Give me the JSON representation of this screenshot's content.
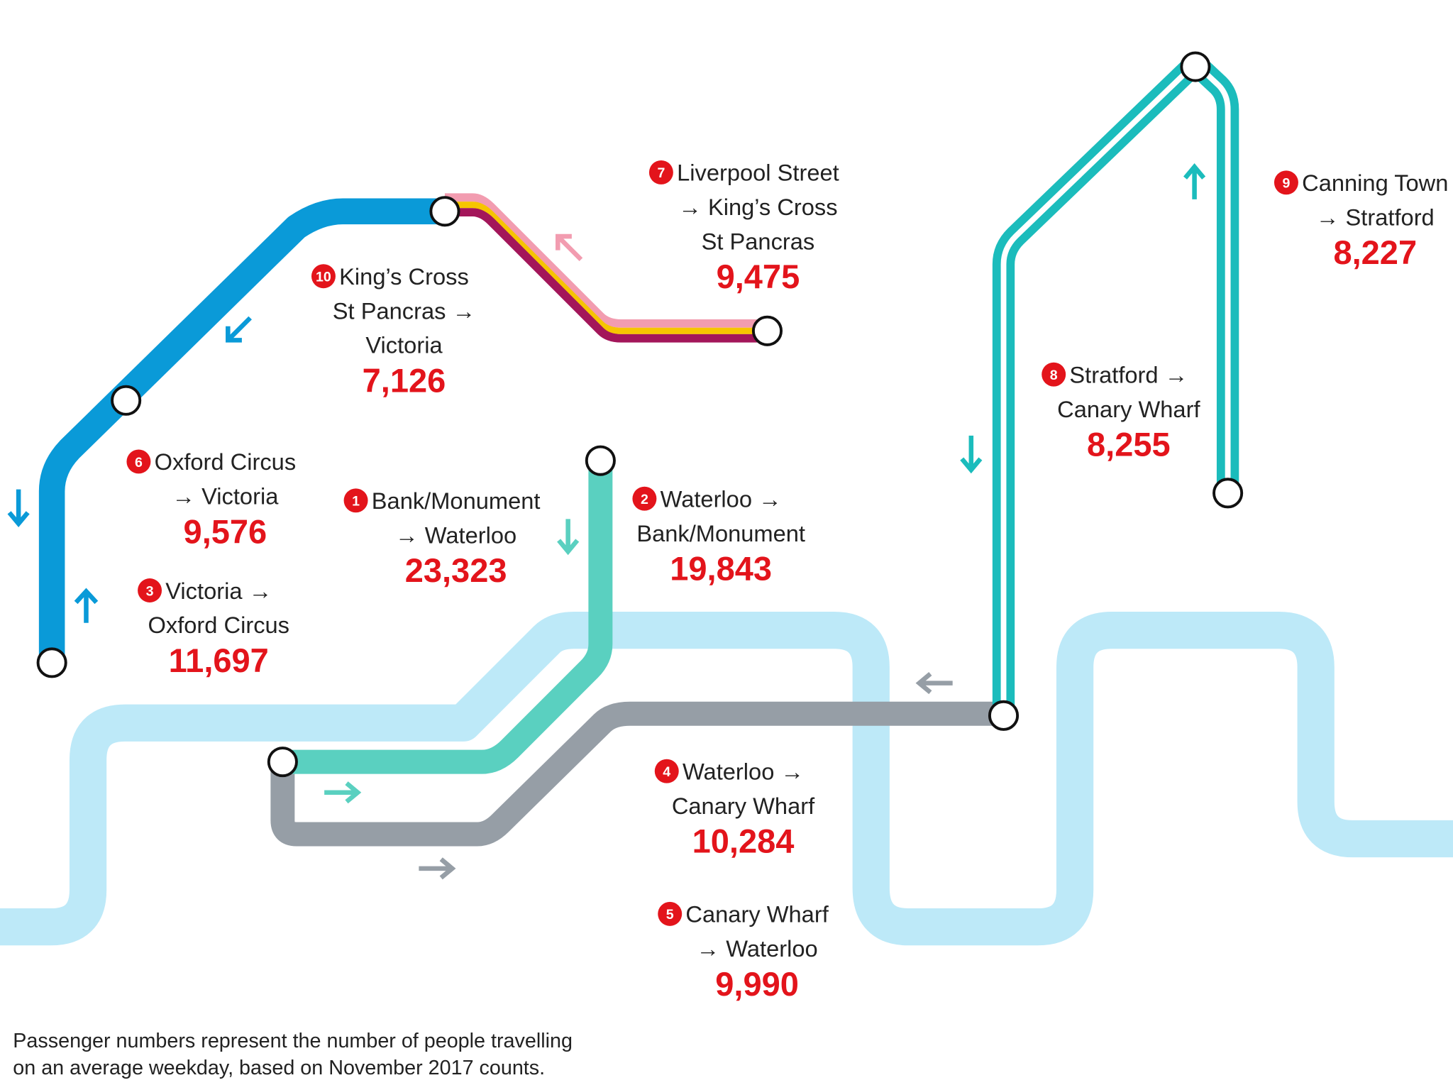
{
  "routes": [
    {
      "rank": "1",
      "lines": [
        "Bank/Monument",
        "→ Waterloo"
      ],
      "count": "23,323"
    },
    {
      "rank": "2",
      "lines": [
        "Waterloo →",
        "Bank/Monument"
      ],
      "count": "19,843"
    },
    {
      "rank": "3",
      "lines": [
        "Victoria →",
        "Oxford Circus"
      ],
      "count": "11,697"
    },
    {
      "rank": "4",
      "lines": [
        "Waterloo →",
        "Canary Wharf"
      ],
      "count": "10,284"
    },
    {
      "rank": "5",
      "lines": [
        "Canary Wharf",
        "→ Waterloo"
      ],
      "count": "9,990"
    },
    {
      "rank": "6",
      "lines": [
        "Oxford Circus",
        "→ Victoria"
      ],
      "count": "9,576"
    },
    {
      "rank": "7",
      "lines": [
        "Liverpool Street",
        "→ King’s Cross",
        "St Pancras"
      ],
      "count": "9,475"
    },
    {
      "rank": "8",
      "lines": [
        "Stratford →",
        "Canary Wharf"
      ],
      "count": "8,255"
    },
    {
      "rank": "9",
      "lines": [
        "Canning Town",
        "→ Stratford"
      ],
      "count": "8,227"
    },
    {
      "rank": "10",
      "lines": [
        "King’s Cross",
        "St Pancras →",
        "Victoria"
      ],
      "count": "7,126"
    }
  ],
  "footnote": [
    "Passenger numbers represent the number of people travelling",
    "on an average weekday, based on November 2017 counts."
  ]
}
